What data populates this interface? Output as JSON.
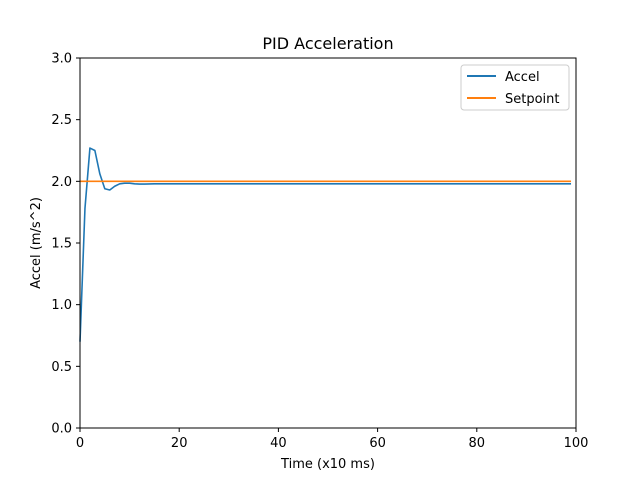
{
  "chart_data": {
    "type": "line",
    "title": "PID Acceleration",
    "xlabel": "Time (x10 ms)",
    "ylabel": "Accel (m/s^2)",
    "xlim": [
      0,
      100
    ],
    "ylim": [
      0,
      3.0
    ],
    "xticks": [
      0,
      20,
      40,
      60,
      80,
      100
    ],
    "xtick_labels": [
      "0",
      "20",
      "40",
      "60",
      "80",
      "100"
    ],
    "yticks": [
      0,
      0.5,
      1.0,
      1.5,
      2.0,
      2.5,
      3.0
    ],
    "ytick_labels": [
      "0.0",
      "0.5",
      "1.0",
      "1.5",
      "2.0",
      "2.5",
      "3.0"
    ],
    "grid": false,
    "legend_position": "top-right",
    "series": [
      {
        "name": "Accel",
        "color": "#1f77b4",
        "x": [
          0,
          1,
          2,
          3,
          4,
          5,
          6,
          7,
          8,
          9,
          10,
          11,
          12,
          13,
          14,
          15,
          20,
          30,
          40,
          50,
          60,
          70,
          80,
          90,
          99
        ],
        "y": [
          0.7,
          1.78,
          2.27,
          2.25,
          2.06,
          1.94,
          1.93,
          1.96,
          1.98,
          1.985,
          1.985,
          1.98,
          1.978,
          1.978,
          1.979,
          1.98,
          1.98,
          1.98,
          1.98,
          1.98,
          1.98,
          1.98,
          1.98,
          1.98,
          1.98
        ]
      },
      {
        "name": "Setpoint",
        "color": "#ff7f0e",
        "x": [
          0,
          99
        ],
        "y": [
          2.0,
          2.0
        ]
      }
    ]
  }
}
